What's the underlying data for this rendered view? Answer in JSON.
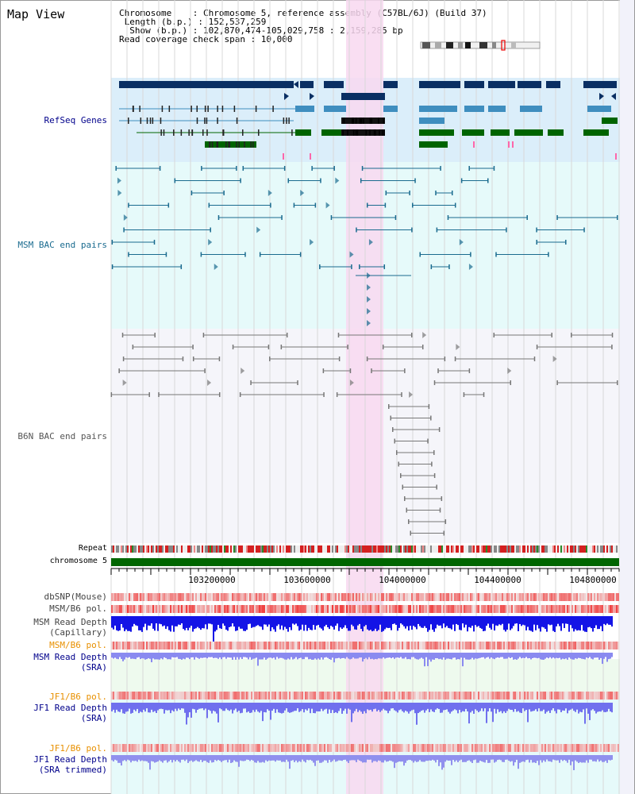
{
  "view_title": "Map View",
  "info": {
    "chromosome_line": "Chromosome    : Chromosome 5, reference assembly (C57BL/6J) (Build 37)",
    "length_line": " Length (b.p.) : 152,537,259",
    "show_line": "  Show (b.p.) : 102,870,474-105,029,758 : 2,159,285 bp",
    "coverage_line": "Read coverage check span : 10,000"
  },
  "tracks": {
    "refseq": "RefSeq Genes",
    "msm_bac": "MSM BAC end pairs",
    "b6n_bac": "B6N BAC end pairs",
    "repeat": "Repeat",
    "chromosome": "chromosome 5",
    "dbsnp": "dbSNP(Mouse)",
    "msm_pol1": "MSM/B6 pol.",
    "msm_depth_cap_1": "MSM Read Depth",
    "msm_depth_cap_2": "(Capillary)",
    "msm_pol2": "MSM/B6 pol.",
    "msm_depth_sra_1": "MSM Read Depth",
    "msm_depth_sra_2": "(SRA)",
    "jf1_pol1": "JF1/B6 pol.",
    "jf1_depth_sra_1": "JF1 Read Depth",
    "jf1_depth_sra_2": "(SRA)",
    "jf1_pol2": "JF1/B6 pol.",
    "jf1_depth_trim_1": "JF1 Read Depth",
    "jf1_depth_trim_2": "(SRA trimmed)"
  },
  "axis_ticks": [
    "103200000",
    "103600000",
    "104000000",
    "104400000",
    "104800000"
  ],
  "colors": {
    "refseq_bg": "#dbeefa",
    "msm_bg": "#e6fafa",
    "b6n_bg": "#f5f5fa",
    "highlight": "#f8d8f0",
    "gene_dark": "#0a2f63",
    "gene_mid": "#3f8ebf",
    "gene_green": "#006400",
    "msm_pair": "#1a6b8f",
    "b6n_pair": "#777777",
    "chromosome_bar": "#006600",
    "depth_blue": "#1010ee",
    "depth_light": "#8080f0",
    "pol_red": "#e84040"
  }
}
